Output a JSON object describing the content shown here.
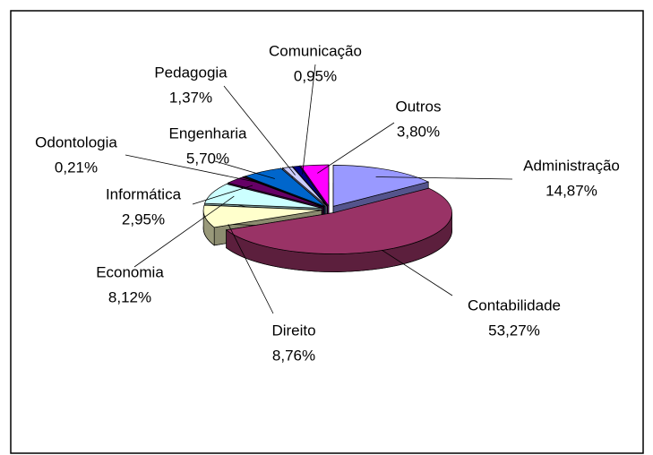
{
  "chart_data": {
    "type": "pie3d",
    "categories": [
      "Administração",
      "Contabilidade",
      "Direito",
      "Economia",
      "Informática",
      "Odontologia",
      "Engenharia",
      "Pedagogia",
      "Comunicação",
      "Outros"
    ],
    "values": [
      14.87,
      53.27,
      8.76,
      8.12,
      2.95,
      0.21,
      5.7,
      1.37,
      0.95,
      3.8
    ],
    "value_labels": [
      "14,87%",
      "53,27%",
      "8,76%",
      "8,12%",
      "2,95%",
      "0,21%",
      "5,70%",
      "1,37%",
      "0,95%",
      "3,80%"
    ],
    "colors": [
      "#9999ff",
      "#993366",
      "#ffffcc",
      "#ccffff",
      "#660066",
      "#ff8080",
      "#0066cc",
      "#ccccff",
      "#000080",
      "#ff00ff"
    ]
  }
}
